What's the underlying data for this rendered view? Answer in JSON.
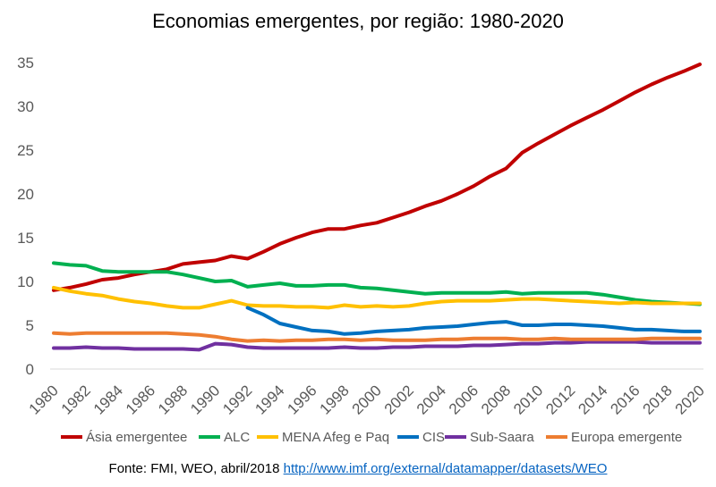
{
  "chart_data": {
    "type": "line",
    "title": "Economias emergentes, por região: 1980-2020",
    "xlabel": "",
    "ylabel": "",
    "x": [
      1980,
      1981,
      1982,
      1983,
      1984,
      1985,
      1986,
      1987,
      1988,
      1989,
      1990,
      1991,
      1992,
      1993,
      1994,
      1995,
      1996,
      1997,
      1998,
      1999,
      2000,
      2001,
      2002,
      2003,
      2004,
      2005,
      2006,
      2007,
      2008,
      2009,
      2010,
      2011,
      2012,
      2013,
      2014,
      2015,
      2016,
      2017,
      2018,
      2019,
      2020
    ],
    "xticks": [
      "1980",
      "1982",
      "1984",
      "1986",
      "1988",
      "1990",
      "1992",
      "1994",
      "1996",
      "1998",
      "2000",
      "2002",
      "2004",
      "2006",
      "2008",
      "2010",
      "2012",
      "2014",
      "2016",
      "2018",
      "2020"
    ],
    "yticks": [
      "0",
      "5",
      "10",
      "15",
      "20",
      "25",
      "30",
      "35"
    ],
    "ylim": [
      0,
      35
    ],
    "grid": false,
    "legend_position": "bottom",
    "series": [
      {
        "name": "Ásia emergentee",
        "color": "#c00000",
        "values": [
          9.0,
          9.3,
          9.7,
          10.2,
          10.4,
          10.8,
          11.1,
          11.4,
          12.0,
          12.2,
          12.4,
          12.9,
          12.6,
          13.4,
          14.3,
          15.0,
          15.6,
          16.0,
          16.0,
          16.4,
          16.7,
          17.3,
          17.9,
          18.6,
          19.2,
          20.0,
          20.9,
          22.0,
          22.9,
          24.7,
          25.8,
          26.8,
          27.8,
          28.7,
          29.6,
          30.6,
          31.6,
          32.5,
          33.3,
          34.0,
          34.8
        ]
      },
      {
        "name": "ALC",
        "color": "#00b050",
        "values": [
          12.1,
          11.9,
          11.8,
          11.2,
          11.1,
          11.1,
          11.1,
          11.1,
          10.8,
          10.4,
          10.0,
          10.1,
          9.4,
          9.6,
          9.8,
          9.5,
          9.5,
          9.6,
          9.6,
          9.3,
          9.2,
          9.0,
          8.8,
          8.6,
          8.7,
          8.7,
          8.7,
          8.7,
          8.8,
          8.6,
          8.7,
          8.7,
          8.7,
          8.7,
          8.5,
          8.2,
          7.9,
          7.7,
          7.6,
          7.5,
          7.4
        ]
      },
      {
        "name": "MENA Afeg e Paq",
        "color": "#ffc000",
        "values": [
          9.3,
          8.9,
          8.6,
          8.4,
          8.0,
          7.7,
          7.5,
          7.2,
          7.0,
          7.0,
          7.4,
          7.8,
          7.3,
          7.2,
          7.2,
          7.1,
          7.1,
          7.0,
          7.3,
          7.1,
          7.2,
          7.1,
          7.2,
          7.5,
          7.7,
          7.8,
          7.8,
          7.8,
          7.9,
          8.0,
          8.0,
          7.9,
          7.8,
          7.7,
          7.6,
          7.5,
          7.6,
          7.5,
          7.5,
          7.5,
          7.5
        ]
      },
      {
        "name": "CIS",
        "color": "#0070c0",
        "values": [
          null,
          null,
          null,
          null,
          null,
          null,
          null,
          null,
          null,
          null,
          null,
          null,
          7.0,
          6.2,
          5.2,
          4.8,
          4.4,
          4.3,
          4.0,
          4.1,
          4.3,
          4.4,
          4.5,
          4.7,
          4.8,
          4.9,
          5.1,
          5.3,
          5.4,
          5.0,
          5.0,
          5.1,
          5.1,
          5.0,
          4.9,
          4.7,
          4.5,
          4.5,
          4.4,
          4.3,
          4.3
        ]
      },
      {
        "name": "Sub-Saara",
        "color": "#7030a0",
        "values": [
          2.4,
          2.4,
          2.5,
          2.4,
          2.4,
          2.3,
          2.3,
          2.3,
          2.3,
          2.2,
          2.9,
          2.8,
          2.5,
          2.4,
          2.4,
          2.4,
          2.4,
          2.4,
          2.5,
          2.4,
          2.4,
          2.5,
          2.5,
          2.6,
          2.6,
          2.6,
          2.7,
          2.7,
          2.8,
          2.9,
          2.9,
          3.0,
          3.0,
          3.1,
          3.1,
          3.1,
          3.1,
          3.0,
          3.0,
          3.0,
          3.0
        ]
      },
      {
        "name": "Europa emergente",
        "color": "#ed7d31",
        "values": [
          4.1,
          4.0,
          4.1,
          4.1,
          4.1,
          4.1,
          4.1,
          4.1,
          4.0,
          3.9,
          3.7,
          3.4,
          3.2,
          3.3,
          3.2,
          3.3,
          3.3,
          3.4,
          3.4,
          3.3,
          3.4,
          3.3,
          3.3,
          3.3,
          3.4,
          3.4,
          3.5,
          3.5,
          3.5,
          3.4,
          3.4,
          3.5,
          3.4,
          3.4,
          3.4,
          3.4,
          3.4,
          3.5,
          3.5,
          3.5,
          3.5
        ]
      }
    ]
  },
  "source": {
    "label": "Fonte: FMI, WEO, abril/2018",
    "link": "http://www.imf.org/external/datamapper/datasets/WEO"
  }
}
